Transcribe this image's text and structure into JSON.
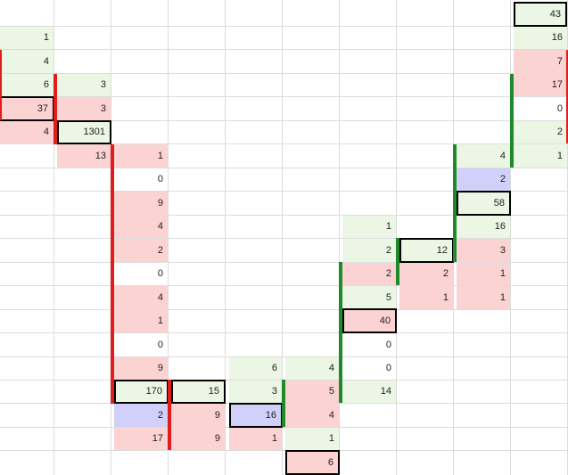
{
  "sheet": {
    "colors": {
      "positive": "#ebf6e4",
      "negative": "#fcd3d3",
      "neutral": "#d0d0fa",
      "down_bar": "#e21b1b",
      "up_bar": "#1e8a2a",
      "grid": "#dcdcdc"
    },
    "col0": [
      "1",
      "4",
      "6",
      "37",
      "4"
    ],
    "col1": [
      "3",
      "3",
      "1301",
      "13"
    ],
    "col2": [
      "1",
      "0",
      "9",
      "4",
      "2",
      "0",
      "4",
      "1",
      "0",
      "9",
      "170",
      "2",
      "17"
    ],
    "col3": [
      "15",
      "9",
      "9"
    ],
    "col4": [
      "6",
      "3",
      "16",
      "1"
    ],
    "col5": [
      "4",
      "5",
      "4",
      "1",
      "6"
    ],
    "col6": [
      "1",
      "2",
      "2",
      "5",
      "40",
      "0",
      "0",
      "14"
    ],
    "col7": [
      "12",
      "2",
      "1"
    ],
    "col8": [
      "4",
      "2",
      "58",
      "16",
      "3",
      "1",
      "1"
    ],
    "col9": [
      "43",
      "16",
      "7",
      "17",
      "0",
      "2",
      "1"
    ]
  }
}
